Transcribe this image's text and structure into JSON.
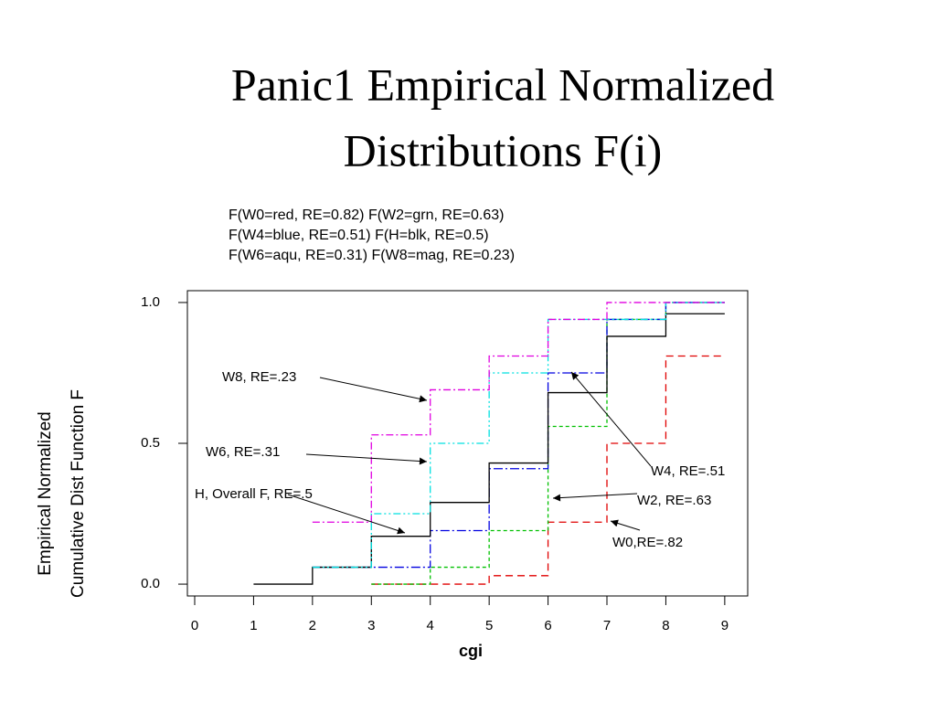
{
  "chart_data": {
    "type": "step",
    "title": [
      "Panic1 Empirical Normalized",
      "Distributions F(i)"
    ],
    "legend_text": [
      "F(W0=red, RE=0.82) F(W2=grn, RE=0.63)",
      "F(W4=blue, RE=0.51) F(H=blk, RE=0.5)",
      "F(W6=aqu, RE=0.31) F(W8=mag, RE=0.23)"
    ],
    "x_label": "cgi",
    "y_label": [
      "Empirical Normalized",
      "Cumulative Dist Function F"
    ],
    "x": [
      1,
      2,
      3,
      4,
      5,
      6,
      7,
      8,
      9
    ],
    "series": [
      {
        "name": "W0",
        "color": "#e00000",
        "dash": "8 5",
        "values": [
          null,
          null,
          0,
          0,
          0.03,
          0.22,
          0.5,
          0.81,
          0.81
        ]
      },
      {
        "name": "W2",
        "color": "#00c000",
        "dash": "4 3",
        "values": [
          null,
          null,
          0,
          0.06,
          0.19,
          0.56,
          0.94,
          1.0,
          1.0
        ]
      },
      {
        "name": "W4",
        "color": "#0000e0",
        "dash": "10 3 2 3",
        "values": [
          null,
          0.06,
          0.06,
          0.19,
          0.41,
          0.75,
          0.94,
          1.0,
          1.0
        ]
      },
      {
        "name": "H",
        "color": "#000000",
        "dash": "",
        "values": [
          0,
          0.06,
          0.17,
          0.29,
          0.43,
          0.68,
          0.88,
          0.96,
          0.96
        ]
      },
      {
        "name": "W6",
        "color": "#00e0e0",
        "dash": "8 3 2 3 2 3",
        "values": [
          null,
          0.06,
          0.25,
          0.5,
          0.75,
          0.94,
          0.94,
          1.0,
          1.0
        ]
      },
      {
        "name": "W8",
        "color": "#e000e0",
        "dash": "8 3 2 3",
        "values": [
          null,
          0.22,
          0.53,
          0.69,
          0.81,
          0.94,
          1.0,
          1.0,
          1.0
        ]
      }
    ],
    "annotations": [
      "W8, RE=.23",
      "W6, RE=.31",
      "H, Overall F, RE=.5",
      "W4, RE=.51",
      "W2, RE=.63",
      "W0,RE=.82"
    ],
    "xlim": [
      -0.124,
      9.39
    ],
    "ylim": [
      -0.042,
      1.042
    ],
    "xticks": [
      0,
      1,
      2,
      3,
      4,
      5,
      6,
      7,
      8,
      9
    ],
    "yticks": [
      {
        "value": 0,
        "label": "0.0"
      },
      {
        "value": 0.5,
        "label": "0.5"
      },
      {
        "value": 1,
        "label": "1.0"
      }
    ]
  }
}
